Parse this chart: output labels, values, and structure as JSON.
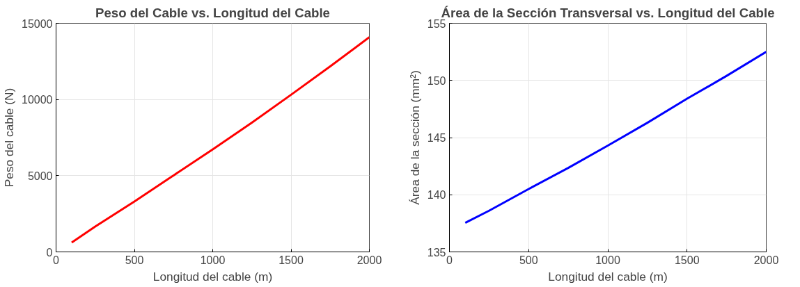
{
  "chart_data": [
    {
      "type": "line",
      "title": "Peso del Cable vs. Longitud del Cable",
      "xlabel": "Longitud del cable (m)",
      "ylabel": "Peso del cable (N)",
      "x": [
        100,
        250,
        500,
        750,
        1000,
        1250,
        1500,
        1750,
        2000
      ],
      "series": [
        {
          "color": "#ff0000",
          "values": [
            620,
            1660,
            3310,
            5020,
            6730,
            8480,
            10310,
            12170,
            14090
          ]
        }
      ],
      "xlim": [
        0,
        2000
      ],
      "ylim": [
        0,
        15000
      ],
      "xticks": [
        0,
        500,
        1000,
        1500,
        2000
      ],
      "yticks": [
        0,
        5000,
        10000,
        15000
      ],
      "grid": true
    },
    {
      "type": "line",
      "title": "Área de la Sección Transversal vs. Longitud del Cable",
      "xlabel": "Longitud del cable (m)",
      "ylabel": "Área de la sección (mm²)",
      "x": [
        100,
        250,
        500,
        750,
        1000,
        1250,
        1500,
        1750,
        2000
      ],
      "series": [
        {
          "color": "#0000ff",
          "values": [
            137.55,
            138.6,
            140.5,
            142.35,
            144.3,
            146.3,
            148.4,
            150.4,
            152.5
          ]
        }
      ],
      "xlim": [
        0,
        2000
      ],
      "ylim": [
        135,
        155
      ],
      "xticks": [
        0,
        500,
        1000,
        1500,
        2000
      ],
      "yticks": [
        135,
        140,
        145,
        150,
        155
      ],
      "grid": true
    }
  ]
}
